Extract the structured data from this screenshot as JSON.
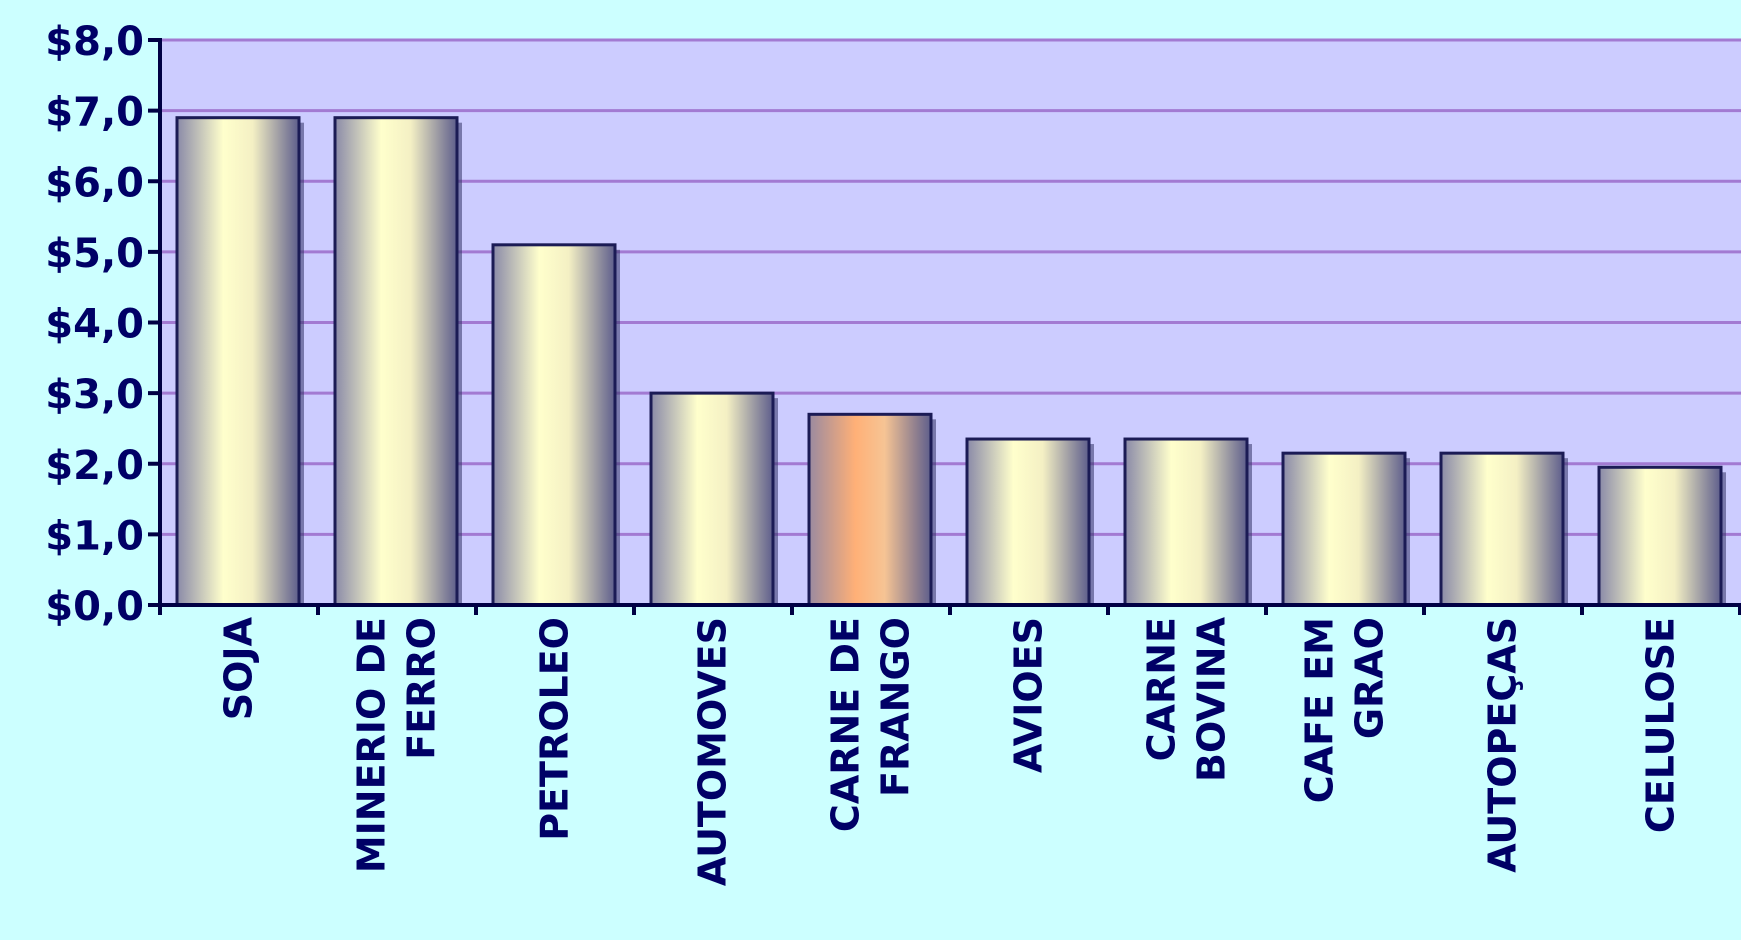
{
  "chart_data": {
    "type": "bar",
    "title": "",
    "xlabel": "",
    "ylabel": "",
    "ylim": [
      0,
      8
    ],
    "y_tick_step": 1,
    "y_tick_labels": [
      "$0,0",
      "$1,0",
      "$2,0",
      "$3,0",
      "$4,0",
      "$5,0",
      "$6,0",
      "$7,0",
      "$8,0"
    ],
    "grid": true,
    "legend": "none",
    "categories": [
      [
        "SOJA"
      ],
      [
        "MINERIO DE",
        "FERRO"
      ],
      [
        "PETROLEO"
      ],
      [
        "AUTOMOVES"
      ],
      [
        "CARNE DE",
        "FRANGO"
      ],
      [
        "AVIOES"
      ],
      [
        "CARNE",
        "BOVINA"
      ],
      [
        "CAFE EM",
        "GRAO"
      ],
      [
        "AUTOPEÇAS"
      ],
      [
        "CELULOSE"
      ]
    ],
    "values": [
      6.9,
      6.9,
      5.1,
      3.0,
      2.7,
      2.35,
      2.35,
      2.15,
      2.15,
      1.95
    ],
    "highlight_index": 4,
    "colors": {
      "background": "#ccffff",
      "plot_area": "#ccccff",
      "gridline": "#a27ad2",
      "axis": "#000044",
      "bar_edge": "#1b1b55",
      "bar_light": "#ffffcc",
      "bar_dark": "#6f6f9a",
      "bar_highlight": "#ffb077",
      "text": "#000066"
    }
  }
}
